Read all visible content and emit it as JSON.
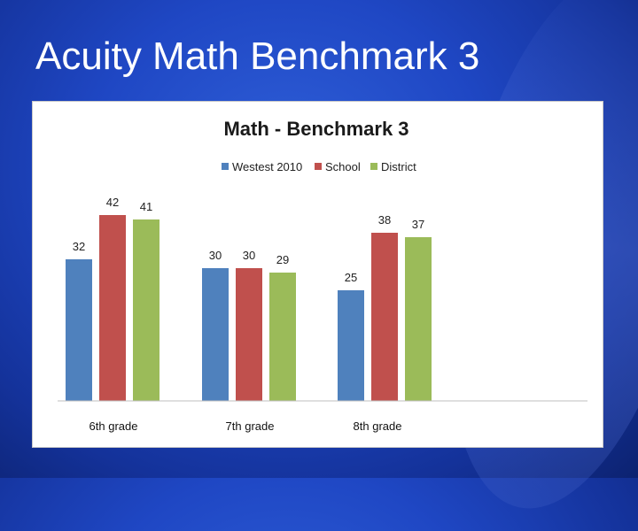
{
  "slide": {
    "title": "Acuity Math Benchmark 3"
  },
  "colors": {
    "westest": "#4f81bd",
    "school": "#c0504d",
    "district": "#9bbb59"
  },
  "chart_data": {
    "type": "bar",
    "title": "Math - Benchmark 3",
    "categories": [
      "6th grade",
      "7th grade",
      "8th grade"
    ],
    "series": [
      {
        "name": "Westest 2010",
        "values": [
          32,
          30,
          25
        ],
        "color": "#4f81bd"
      },
      {
        "name": "School",
        "values": [
          42,
          30,
          38
        ],
        "color": "#c0504d"
      },
      {
        "name": "District",
        "values": [
          41,
          29,
          37
        ],
        "color": "#9bbb59"
      }
    ],
    "ylim": [
      0,
      50
    ],
    "grid": false,
    "legend_position": "top",
    "data_labels": true
  }
}
